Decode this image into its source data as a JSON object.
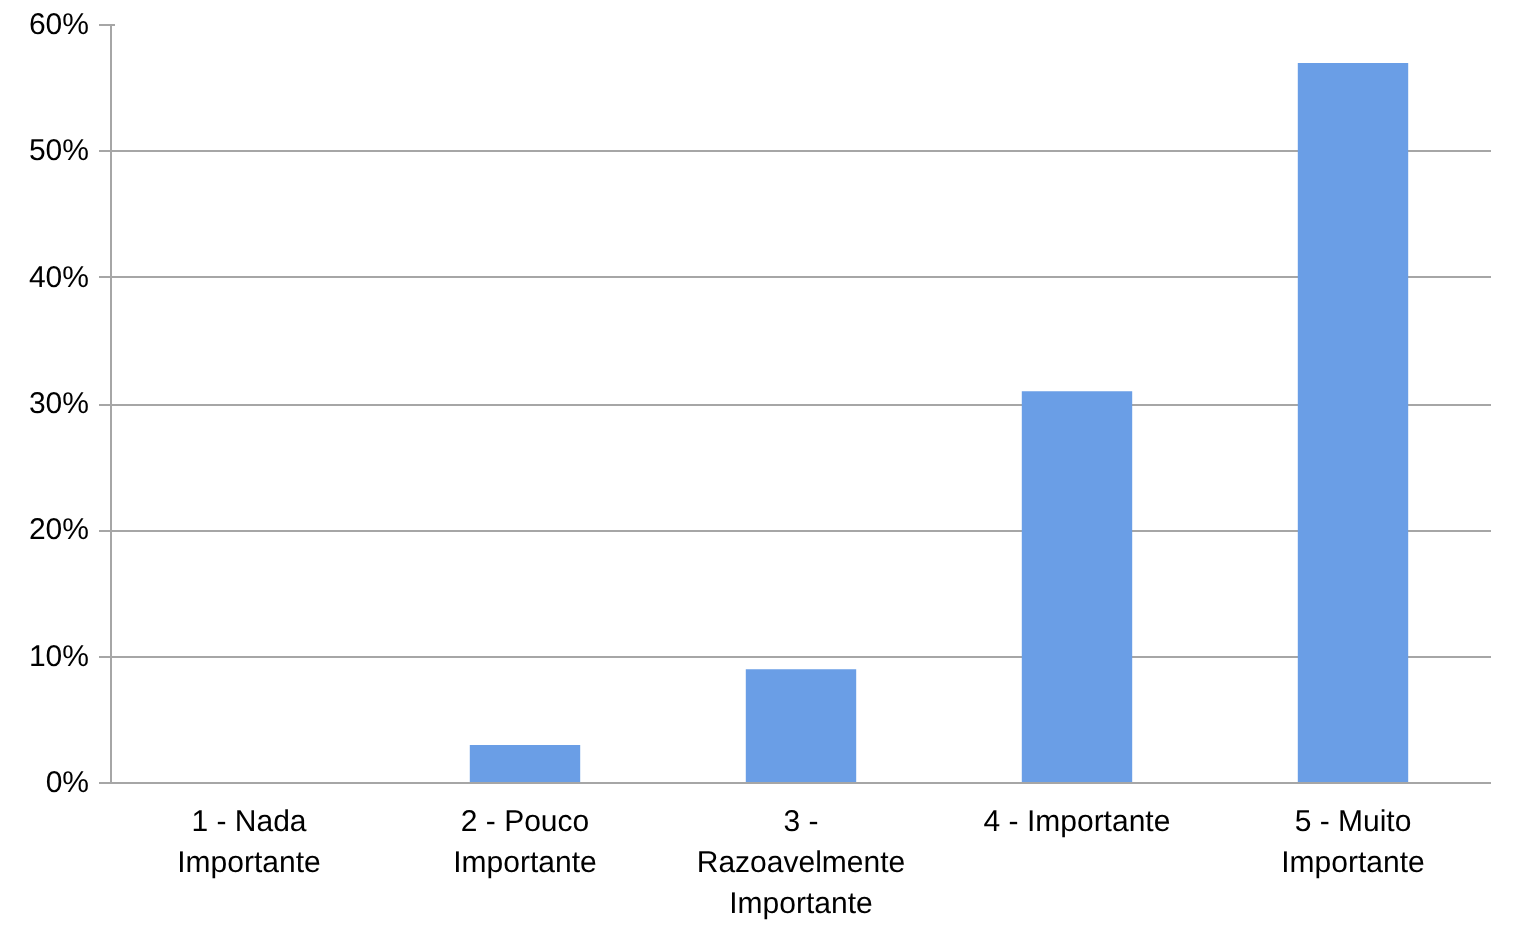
{
  "chart_data": {
    "type": "bar",
    "categories": [
      "1 - Nada Importante",
      "2 - Pouco Importante",
      "3 - Razoavelmente Importante",
      "4 - Importante",
      "5 - Muito Importante"
    ],
    "values": [
      0,
      3,
      9,
      31,
      57
    ],
    "color": "#6a9ee6",
    "ylim": [
      0,
      60
    ],
    "yticks": [
      {
        "value": 0,
        "label": "0%"
      },
      {
        "value": 10,
        "label": "10%"
      },
      {
        "value": 20,
        "label": "20%"
      },
      {
        "value": 30,
        "label": "30%"
      },
      {
        "value": 40,
        "label": "40%"
      },
      {
        "value": 50,
        "label": "50%"
      },
      {
        "value": 60,
        "label": "60%"
      }
    ],
    "grid": "y"
  }
}
